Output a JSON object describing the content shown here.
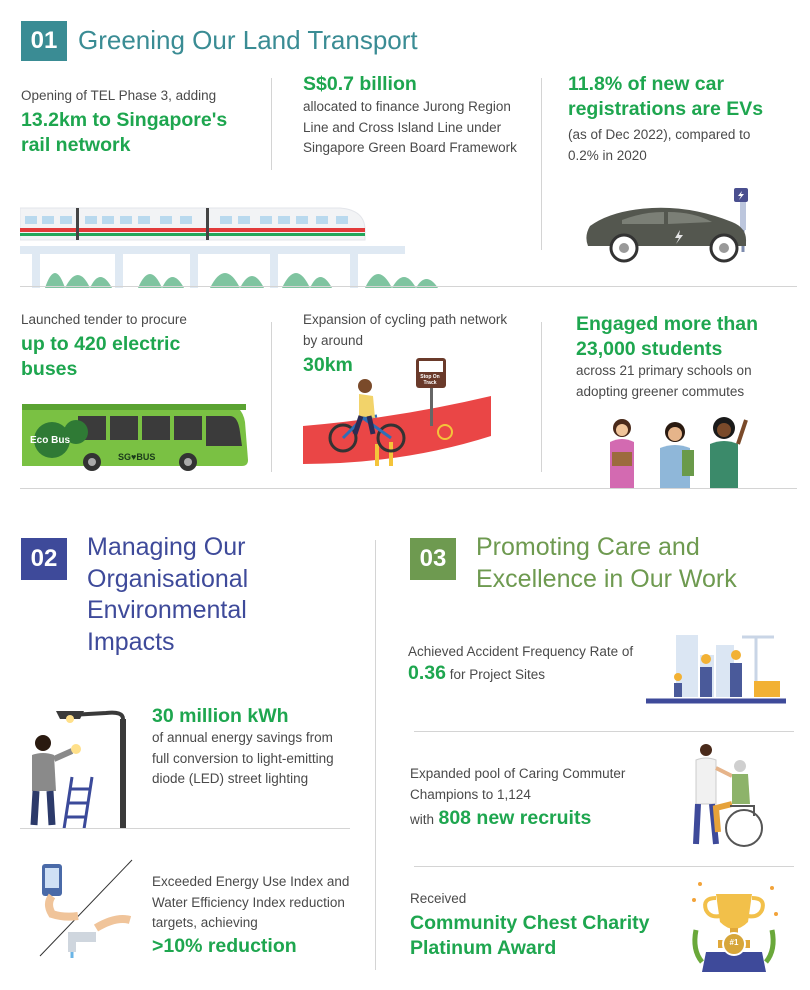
{
  "colors": {
    "teal": "#3a8c94",
    "navy": "#3e4a9a",
    "olive": "#6e9a50",
    "green": "#1ea64f",
    "text": "#4a4a4a"
  },
  "sec1": {
    "number": "01",
    "title": "Greening Our Land Transport",
    "tel": {
      "text": "Opening of TEL Phase 3, adding",
      "highlight": "13.2km to Singapore's rail network"
    },
    "funding": {
      "highlight": "S$0.7 billion",
      "text": "allocated to finance Jurong Region Line and Cross Island Line under Singapore Green Board Framework"
    },
    "evs": {
      "highlight": "11.8% of new car registrations are EVs",
      "text": "(as of Dec 2022), compared to 0.2% in 2020"
    },
    "buses": {
      "text": "Launched tender to procure",
      "highlight": "up to 420 electric buses",
      "bus_label": "Eco Bus",
      "bus_brand": "SG♥BUS"
    },
    "cycling": {
      "text": "Expansion of cycling path network by around",
      "highlight": "30km",
      "sign_text": "Stop On Track"
    },
    "students": {
      "highlight": "Engaged more than 23,000 students",
      "text": "across 21 primary schools on adopting greener commutes"
    }
  },
  "sec2": {
    "number": "02",
    "title": "Managing Our Organisational Environmental Impacts",
    "led": {
      "highlight": "30 million kWh",
      "text": "of annual energy savings from full conversion to light-emitting diode (LED) street lighting"
    },
    "energy": {
      "text": "Exceeded Energy Use Index and Water Efficiency Index reduction targets, achieving",
      "highlight": ">10% reduction"
    }
  },
  "sec3": {
    "number": "03",
    "title": "Promoting Care and Excellence in Our Work",
    "accident": {
      "text_before": "Achieved Accident Frequency Rate of",
      "value": "0.36",
      "text_after": "for Project Sites"
    },
    "champions": {
      "text": "Expanded pool of Caring Commuter Champions to 1,124",
      "with": "with",
      "highlight": "808 new recruits"
    },
    "award": {
      "text": "Received",
      "highlight": "Community Chest Charity Platinum Award",
      "medal_label": "#1"
    }
  },
  "icons": [
    "train-illustration",
    "electric-car-icon",
    "charging-station-icon",
    "electric-bus-illustration",
    "cyclist-illustration",
    "students-illustration",
    "street-light-worker-illustration",
    "tap-water-illustration",
    "construction-workers-illustration",
    "wheelchair-care-illustration",
    "trophy-icon"
  ]
}
